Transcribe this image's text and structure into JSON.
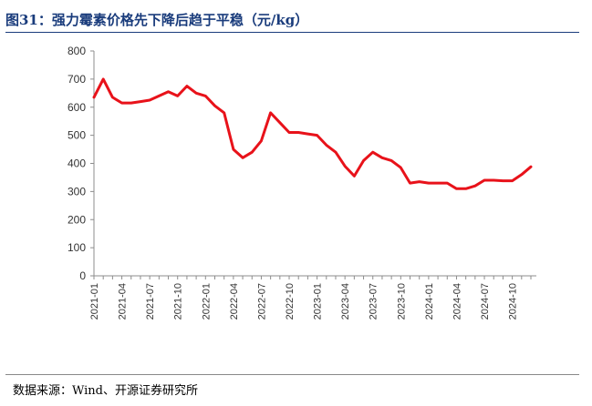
{
  "figure": {
    "title": "图31：强力霉素价格先下降后趋于平稳（元/kg）",
    "source": "数据来源：Wind、开源证券研究所"
  },
  "chart_data": {
    "type": "line",
    "title": "",
    "xlabel": "",
    "ylabel": "",
    "ylim": [
      0,
      800
    ],
    "yticks": [
      0,
      100,
      200,
      300,
      400,
      500,
      600,
      700,
      800
    ],
    "grid": false,
    "legend": "none",
    "color": "#e8121a",
    "xtick_labels": [
      "2021-01",
      "2021-04",
      "2021-07",
      "2021-10",
      "2022-01",
      "2022-04",
      "2022-07",
      "2022-10",
      "2023-01",
      "2023-04",
      "2023-07",
      "2023-10",
      "2024-01",
      "2024-04",
      "2024-07",
      "2024-10"
    ],
    "series": [
      {
        "x": [
          "2021-01",
          "2021-02",
          "2021-03",
          "2021-04",
          "2021-05",
          "2021-06",
          "2021-07",
          "2021-08",
          "2021-09",
          "2021-10",
          "2021-11",
          "2021-12",
          "2022-01",
          "2022-02",
          "2022-03",
          "2022-04",
          "2022-05",
          "2022-06",
          "2022-07",
          "2022-08",
          "2022-09",
          "2022-10",
          "2022-11",
          "2022-12",
          "2023-01",
          "2023-02",
          "2023-03",
          "2023-04",
          "2023-05",
          "2023-06",
          "2023-07",
          "2023-08",
          "2023-09",
          "2023-10",
          "2023-11",
          "2023-12",
          "2024-01",
          "2024-02",
          "2024-03",
          "2024-04",
          "2024-05",
          "2024-06",
          "2024-07",
          "2024-08",
          "2024-09",
          "2024-10",
          "2024-11",
          "2024-12"
        ],
        "values": [
          635,
          700,
          635,
          615,
          615,
          620,
          625,
          640,
          655,
          640,
          675,
          650,
          640,
          605,
          580,
          450,
          420,
          440,
          480,
          580,
          545,
          510,
          510,
          505,
          500,
          465,
          440,
          390,
          355,
          410,
          440,
          420,
          410,
          385,
          330,
          335,
          330,
          330,
          330,
          310,
          310,
          320,
          340,
          340,
          338,
          338,
          360,
          388
        ]
      }
    ]
  }
}
